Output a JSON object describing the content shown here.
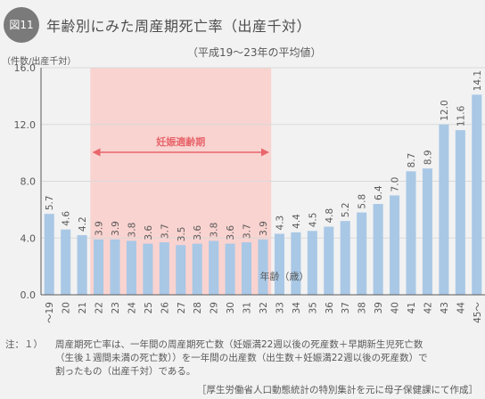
{
  "figure_label": "図11",
  "title": "年齢別にみた周産期死亡率（出産千対）",
  "subtitle": "（平成19〜23年の平均値）",
  "chart_data": {
    "type": "bar",
    "categories": [
      "〜19",
      "20",
      "21",
      "22",
      "23",
      "24",
      "25",
      "26",
      "27",
      "28",
      "29",
      "30",
      "31",
      "32",
      "33",
      "34",
      "35",
      "36",
      "37",
      "38",
      "39",
      "40",
      "41",
      "42",
      "43",
      "44",
      "45〜"
    ],
    "values": [
      5.7,
      4.6,
      4.2,
      3.9,
      3.9,
      3.8,
      3.6,
      3.7,
      3.5,
      3.6,
      3.8,
      3.6,
      3.7,
      3.9,
      4.3,
      4.4,
      4.5,
      4.8,
      5.2,
      5.8,
      6.4,
      7.0,
      8.7,
      8.9,
      12.0,
      11.6,
      14.1
    ],
    "value_labels": [
      "5.7",
      "4.6",
      "4.2",
      "3.9",
      "3.9",
      "3.8",
      "3.6",
      "3.7",
      "3.5",
      "3.6",
      "3.8",
      "3.6",
      "3.7",
      "3.9",
      "4.3",
      "4.4",
      "4.5",
      "4.8",
      "5.2",
      "5.8",
      "6.4",
      "7.0",
      "8.7",
      "8.9",
      "12.0",
      "11.6",
      "14.1"
    ],
    "ylabel": "（件数/出産千対）",
    "xlabel": "年齢（歳）",
    "ylim": [
      0,
      16
    ],
    "yticks": [
      0,
      4,
      8,
      12,
      16
    ],
    "ytick_labels": [
      "0.0",
      "4.0",
      "8.0",
      "12.0",
      "16.0"
    ],
    "grid": true,
    "highlight_band": {
      "label": "妊娠適齢期",
      "from_category": "22",
      "to_category": "32",
      "color": "#f9d3d0"
    },
    "bar_color": "#a9c8e6",
    "arrow_color": "#e8656b",
    "axis_color": "#5a5a5a"
  },
  "notes": {
    "label": "注：１）",
    "lines": [
      "周産期死亡率は、一年間の周産期死亡数（妊娠満22週以後の死産数＋早期新生児死亡数",
      "（生後１週間未満の死亡数））を一年間の出産数（出生数＋妊娠満22週以後の死産数）で",
      "割ったもの（出産千対）である。"
    ]
  },
  "source": "［厚生労働省人口動態統計の特別集計を元に母子保健課にて作成］"
}
